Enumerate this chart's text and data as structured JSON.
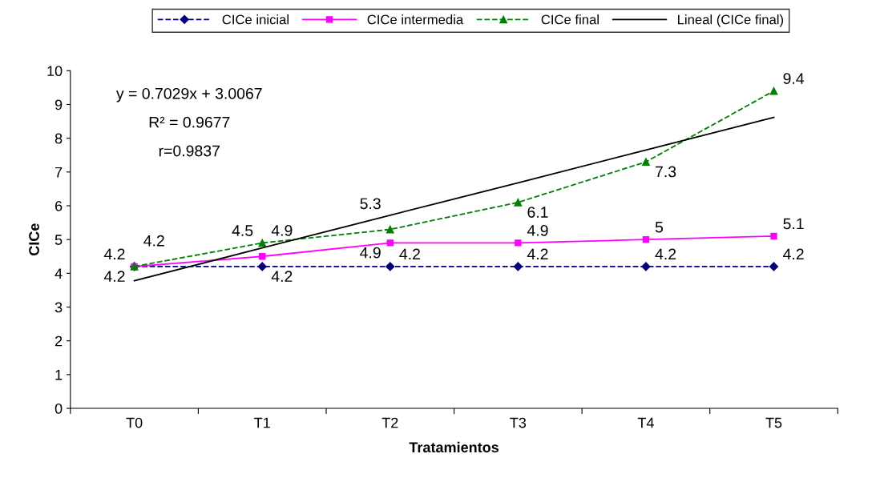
{
  "chart_data": {
    "type": "line",
    "xlabel": "Tratamientos",
    "ylabel": "CICe",
    "categories": [
      "T0",
      "T1",
      "T2",
      "T3",
      "T4",
      "T5"
    ],
    "series": [
      {
        "name": "CICe inicial",
        "color": "#000080",
        "values": [
          4.2,
          4.2,
          4.2,
          4.2,
          4.2,
          4.2
        ],
        "marker": "diamond",
        "line_style": "dashed",
        "value_labels": [
          "4.2",
          "4.2",
          "4.2",
          "4.2",
          "4.2",
          "4.2"
        ]
      },
      {
        "name": "CICe intermedia",
        "color": "#ff00ff",
        "values": [
          4.2,
          4.5,
          4.9,
          4.9,
          5,
          5.1
        ],
        "marker": "square",
        "line_style": "solid",
        "value_labels": [
          "4.2",
          "4.5",
          "4.9",
          "4.9",
          "5",
          "5.1"
        ]
      },
      {
        "name": "CICe final",
        "color": "#008000",
        "values": [
          4.2,
          4.9,
          5.3,
          6.1,
          7.3,
          9.4
        ],
        "marker": "triangle",
        "line_style": "dashed",
        "value_labels": [
          "4.2",
          "4.9",
          "5.3",
          "6.1",
          "7.3",
          "9.4"
        ]
      },
      {
        "name": "Lineal (CICe final)",
        "color": "#000000",
        "values": [
          3.78,
          4.75,
          5.72,
          6.68,
          7.65,
          8.62
        ],
        "marker": "none",
        "line_style": "solid"
      }
    ],
    "ylim": [
      0,
      10
    ],
    "yticks": [
      0,
      1,
      2,
      3,
      4,
      5,
      6,
      7,
      8,
      9,
      10
    ],
    "grid": false,
    "legend": "top",
    "annotations": [
      "y = 0.7029x + 3.0067",
      "R² = 0.9677",
      "r=0.9837"
    ]
  }
}
